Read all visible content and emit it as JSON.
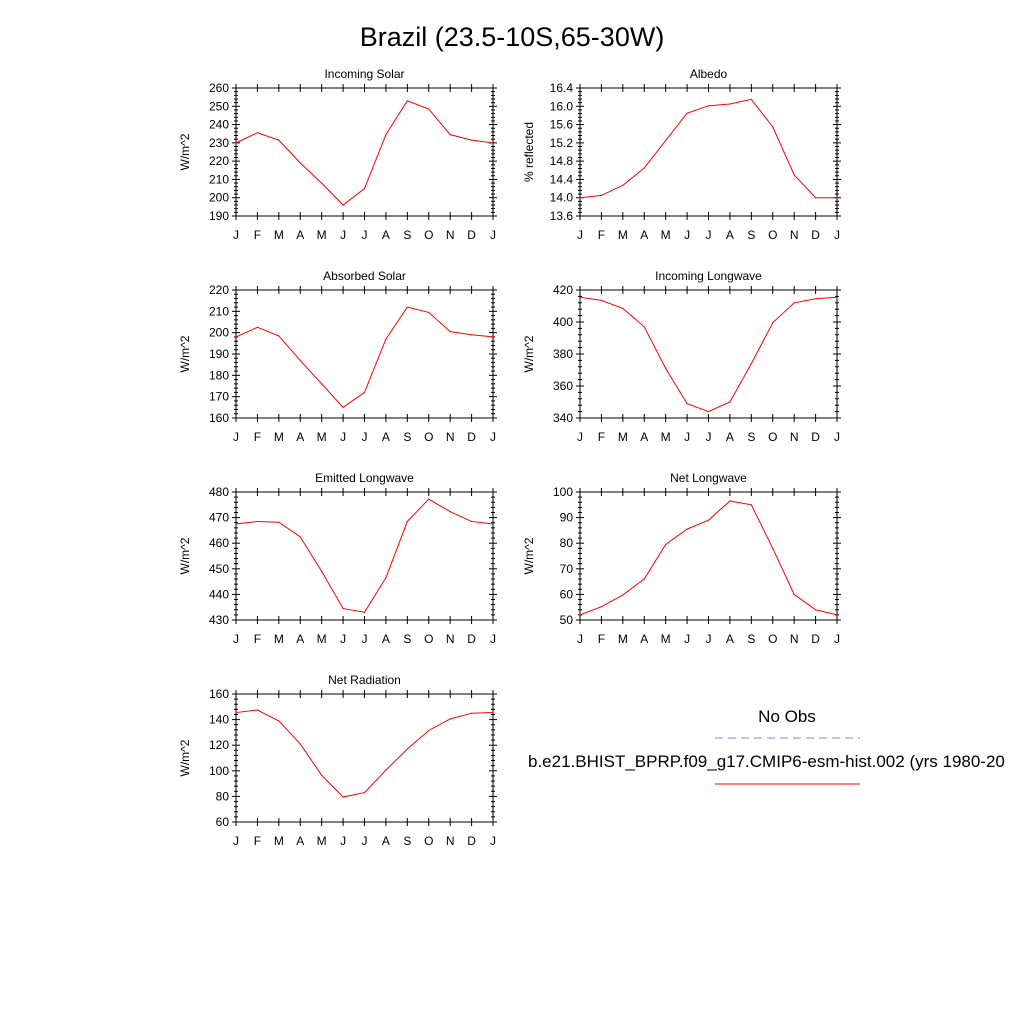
{
  "figure": {
    "title": "Brazil (23.5-10S,65-30W)",
    "months": [
      "J",
      "F",
      "M",
      "A",
      "M",
      "J",
      "J",
      "A",
      "S",
      "O",
      "N",
      "D",
      "J"
    ]
  },
  "legend": {
    "obs_label": "No Obs",
    "model_label": "b.e21.BHIST_BPRP.f09_g17.CMIP6-esm-hist.002 (yrs 1980-20",
    "obs_color": "#8080ff",
    "model_color": "#ff0000"
  },
  "chart_data": [
    {
      "type": "line",
      "title": "Incoming Solar",
      "ylabel": "W/m^2",
      "ylim": [
        190,
        260
      ],
      "yticks": [
        "190",
        "200",
        "210",
        "220",
        "230",
        "240",
        "250",
        "260"
      ],
      "series": [
        {
          "values": [
            230,
            235.5,
            231.5,
            219,
            208,
            196,
            205,
            234.5,
            253,
            248.5,
            234.5,
            231.5,
            230
          ]
        }
      ]
    },
    {
      "type": "line",
      "title": "Albedo",
      "ylabel": "% reflected",
      "ylim": [
        13.6,
        16.4
      ],
      "yticks": [
        "13.6",
        "14.0",
        "14.4",
        "14.8",
        "15.2",
        "15.6",
        "16.0",
        "16.4"
      ],
      "series": [
        {
          "values": [
            14.0,
            14.05,
            14.27,
            14.65,
            15.25,
            15.85,
            16.01,
            16.05,
            16.15,
            15.55,
            14.5,
            14.0,
            14.0
          ]
        }
      ]
    },
    {
      "type": "line",
      "title": "Absorbed Solar",
      "ylabel": "W/m^2",
      "ylim": [
        160,
        220
      ],
      "yticks": [
        "160",
        "170",
        "180",
        "190",
        "200",
        "210",
        "220"
      ],
      "series": [
        {
          "values": [
            198,
            202.5,
            198.5,
            187,
            176,
            165,
            172,
            197,
            212,
            209.5,
            200.5,
            199,
            198
          ]
        }
      ]
    },
    {
      "type": "line",
      "title": "Incoming Longwave",
      "ylabel": "W/m^2",
      "ylim": [
        340,
        420
      ],
      "yticks": [
        "340",
        "360",
        "380",
        "400",
        "420"
      ],
      "series": [
        {
          "values": [
            415.5,
            413.5,
            408.5,
            397,
            371,
            349,
            344,
            350,
            374,
            399.5,
            412,
            414.5,
            415.5
          ]
        }
      ]
    },
    {
      "type": "line",
      "title": "Emitted Longwave",
      "ylabel": "W/m^2",
      "ylim": [
        430,
        480
      ],
      "yticks": [
        "430",
        "440",
        "450",
        "460",
        "470",
        "480"
      ],
      "series": [
        {
          "values": [
            467.5,
            468.5,
            468.2,
            462.5,
            449,
            434.5,
            433,
            446.5,
            468.5,
            477.2,
            472.3,
            468.5,
            467.5
          ]
        }
      ]
    },
    {
      "type": "line",
      "title": "Net Longwave",
      "ylabel": "W/m^2",
      "ylim": [
        50,
        100
      ],
      "yticks": [
        "50",
        "60",
        "70",
        "80",
        "90",
        "100"
      ],
      "series": [
        {
          "values": [
            52,
            55.2,
            59.8,
            66,
            79.5,
            85.5,
            89,
            96.5,
            95,
            78,
            60,
            54,
            52
          ]
        }
      ]
    },
    {
      "type": "line",
      "title": "Net Radiation",
      "ylabel": "W/m^2",
      "ylim": [
        60,
        160
      ],
      "yticks": [
        "60",
        "80",
        "100",
        "120",
        "140",
        "160"
      ],
      "series": [
        {
          "values": [
            145.5,
            147.5,
            139,
            121,
            96.5,
            79.5,
            83,
            100.5,
            117,
            131.5,
            140.5,
            145,
            145.5
          ]
        }
      ]
    }
  ]
}
